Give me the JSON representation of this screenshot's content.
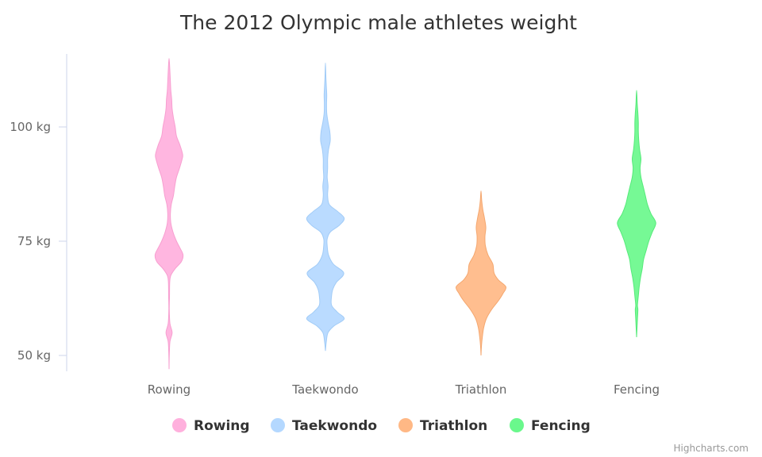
{
  "credits": "Highcharts.com",
  "chart_data": {
    "type": "violin",
    "title": "The 2012 Olympic male athletes weight",
    "xlabel": "",
    "ylabel": "",
    "ylim": [
      46,
      116
    ],
    "yticks": [
      50,
      75,
      100
    ],
    "ytick_labels": [
      "50 kg",
      "75 kg",
      "100 kg"
    ],
    "legend_position": "bottom-center",
    "grid": false,
    "categories": [
      "Rowing",
      "Taekwondo",
      "Triathlon",
      "Fencing"
    ],
    "series": [
      {
        "name": "Rowing",
        "color": "#ffb0dd",
        "edge": "#f79fd0",
        "range": [
          47,
          115
        ],
        "profile": [
          [
            47,
            0
          ],
          [
            50,
            0.5
          ],
          [
            53,
            2
          ],
          [
            55,
            7
          ],
          [
            57,
            2
          ],
          [
            60,
            0.5
          ],
          [
            63,
            1
          ],
          [
            66,
            1.5
          ],
          [
            67.5,
            4
          ],
          [
            69,
            14
          ],
          [
            70.5,
            28
          ],
          [
            72,
            32
          ],
          [
            73.5,
            25
          ],
          [
            75,
            17
          ],
          [
            77,
            9
          ],
          [
            79,
            4
          ],
          [
            81,
            3
          ],
          [
            83,
            5
          ],
          [
            85,
            10
          ],
          [
            87,
            13
          ],
          [
            89,
            17
          ],
          [
            91,
            24
          ],
          [
            93,
            30
          ],
          [
            94,
            31
          ],
          [
            96,
            25
          ],
          [
            98,
            17
          ],
          [
            100,
            14
          ],
          [
            102,
            10
          ],
          [
            104,
            7
          ],
          [
            106,
            6
          ],
          [
            108,
            4
          ],
          [
            110,
            3
          ],
          [
            113,
            1.5
          ],
          [
            115,
            0
          ]
        ]
      },
      {
        "name": "Taekwondo",
        "color": "#b4d8ff",
        "edge": "#a2ccf7",
        "range": [
          51,
          114
        ],
        "profile": [
          [
            51,
            0
          ],
          [
            53,
            2
          ],
          [
            55,
            6
          ],
          [
            56.5,
            20
          ],
          [
            58,
            43
          ],
          [
            59.5,
            27
          ],
          [
            61,
            14
          ],
          [
            63,
            14
          ],
          [
            64.5,
            17
          ],
          [
            66,
            25
          ],
          [
            68,
            42
          ],
          [
            70,
            18
          ],
          [
            72,
            7
          ],
          [
            74,
            4
          ],
          [
            75.5,
            4
          ],
          [
            77,
            11
          ],
          [
            78.5,
            32
          ],
          [
            80,
            43
          ],
          [
            81.5,
            28
          ],
          [
            83,
            9
          ],
          [
            85,
            5
          ],
          [
            87,
            6
          ],
          [
            89,
            4
          ],
          [
            91,
            5
          ],
          [
            93,
            5
          ],
          [
            95,
            7
          ],
          [
            97,
            11
          ],
          [
            99,
            10
          ],
          [
            101,
            6
          ],
          [
            103,
            3
          ],
          [
            105,
            2.5
          ],
          [
            107,
            3
          ],
          [
            109,
            2
          ],
          [
            111,
            1
          ],
          [
            114,
            0
          ]
        ]
      },
      {
        "name": "Triathlon",
        "color": "#ffb885",
        "edge": "#f4a76f",
        "range": [
          50,
          86
        ],
        "profile": [
          [
            50,
            0
          ],
          [
            52,
            1
          ],
          [
            54,
            3
          ],
          [
            56,
            6
          ],
          [
            58,
            12
          ],
          [
            60,
            24
          ],
          [
            62,
            40
          ],
          [
            63.5,
            50
          ],
          [
            65,
            57
          ],
          [
            66.5,
            40
          ],
          [
            68,
            30
          ],
          [
            70,
            27
          ],
          [
            72,
            16
          ],
          [
            74,
            10
          ],
          [
            76,
            9
          ],
          [
            78,
            11
          ],
          [
            80,
            8
          ],
          [
            82,
            4
          ],
          [
            84,
            1.5
          ],
          [
            86,
            0
          ]
        ]
      },
      {
        "name": "Fencing",
        "color": "#6af88c",
        "edge": "#56ea7a",
        "range": [
          54,
          108
        ],
        "profile": [
          [
            54,
            0
          ],
          [
            56,
            1
          ],
          [
            58,
            2
          ],
          [
            60,
            3
          ],
          [
            61,
            2
          ],
          [
            63,
            4
          ],
          [
            65,
            6
          ],
          [
            67,
            9
          ],
          [
            69,
            13
          ],
          [
            71,
            16
          ],
          [
            73,
            22
          ],
          [
            75,
            28
          ],
          [
            77,
            36
          ],
          [
            79,
            44
          ],
          [
            81,
            33
          ],
          [
            83,
            25
          ],
          [
            85,
            20
          ],
          [
            87,
            15
          ],
          [
            89,
            10
          ],
          [
            91,
            8
          ],
          [
            93,
            10
          ],
          [
            95,
            7
          ],
          [
            97,
            5
          ],
          [
            99,
            4
          ],
          [
            101,
            4
          ],
          [
            103,
            3
          ],
          [
            105,
            1.5
          ],
          [
            108,
            0
          ]
        ]
      }
    ]
  }
}
